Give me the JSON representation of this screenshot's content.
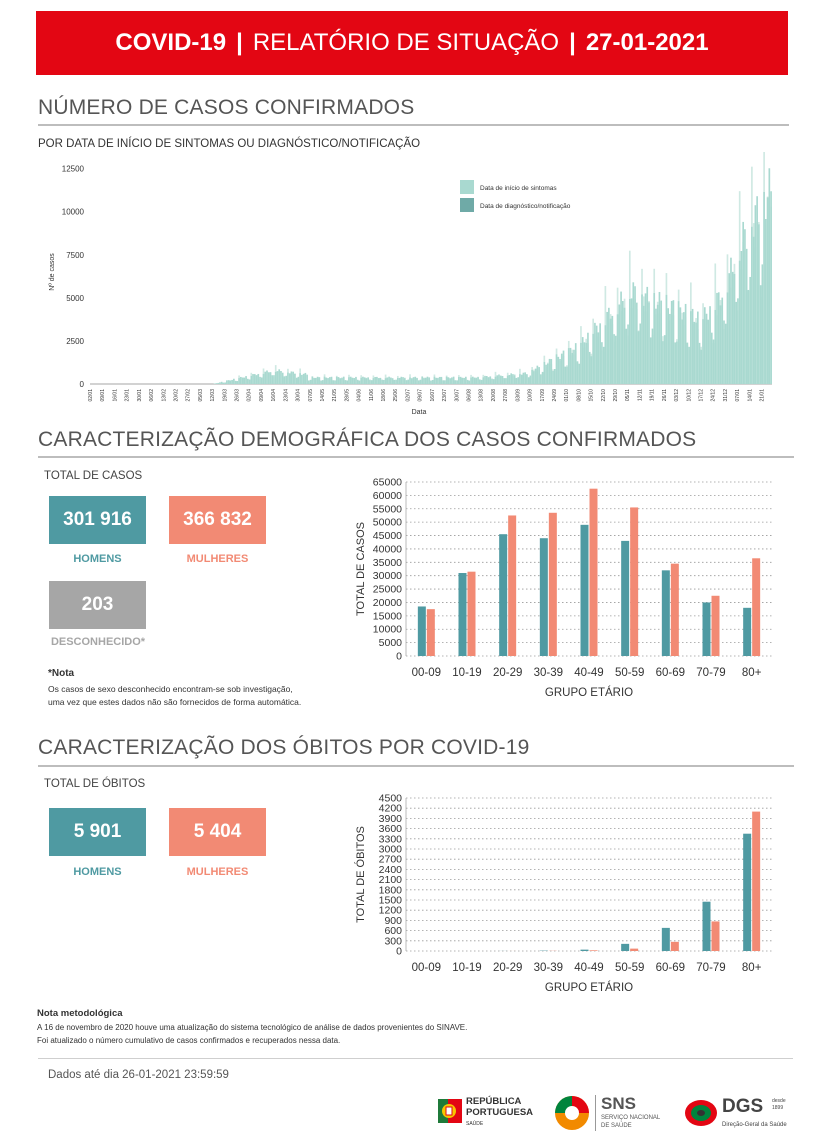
{
  "header": {
    "part1": "COVID-19",
    "sep1": "|",
    "part2": "RELATÓRIO DE SITUAÇÃO",
    "sep2": "|",
    "part3": "27-01-2021"
  },
  "section1": {
    "title": "NÚMERO DE CASOS CONFIRMADOS",
    "subtitle": "POR DATA DE INÍCIO DE SINTOMAS OU DIAGNÓSTICO/NOTIFICAÇÃO",
    "legend": [
      "Data de início de sintomas",
      "Data de diagnóstico/notificação"
    ],
    "ylabel": "Nº de casos",
    "xlabel": "Data",
    "yticks": [
      "0",
      "2500",
      "5000",
      "7500",
      "10000",
      "12500"
    ],
    "xticks": [
      "02/01",
      "09/01",
      "16/01",
      "23/01",
      "30/01",
      "06/02",
      "13/02",
      "20/02",
      "27/02",
      "05/03",
      "12/03",
      "19/03",
      "26/03",
      "02/04",
      "09/04",
      "16/04",
      "23/04",
      "30/04",
      "07/05",
      "14/05",
      "21/05",
      "28/05",
      "04/06",
      "11/06",
      "18/06",
      "25/06",
      "02/07",
      "09/07",
      "16/07",
      "23/07",
      "30/07",
      "06/08",
      "13/08",
      "20/08",
      "27/08",
      "03/09",
      "10/09",
      "17/09",
      "24/09",
      "01/10",
      "08/10",
      "15/10",
      "22/10",
      "29/10",
      "05/11",
      "12/11",
      "19/11",
      "26/11",
      "03/12",
      "10/12",
      "17/12",
      "24/12",
      "31/12",
      "07/01",
      "14/01",
      "21/01"
    ]
  },
  "section2": {
    "title": "CARACTERIZAÇÃO DEMOGRÁFICA DOS CASOS CONFIRMADOS",
    "total_label": "TOTAL DE CASOS",
    "men_value": "301 916",
    "men_label": "HOMENS",
    "women_value": "366 832",
    "women_label": "MULHERES",
    "unknown_value": "203",
    "unknown_label": "DESCONHECIDO*",
    "note_title": "*Nota",
    "note_text1": "Os casos de sexo desconhecido encontram-se sob investigação,",
    "note_text2": "uma vez que estes dados não são fornecidos de forma automática."
  },
  "section3": {
    "title": "CARACTERIZAÇÃO DOS ÓBITOS POR COVID-19",
    "total_label": "TOTAL DE ÓBITOS",
    "men_value": "5 901",
    "men_label": "HOMENS",
    "women_value": "5 404",
    "women_label": "MULHERES"
  },
  "footer": {
    "nota_title": "Nota metodológica",
    "nota_line1": "A 16 de novembro de 2020 houve uma atualização do sistema tecnológico de análise de dados provenientes do SINAVE.",
    "nota_line2": "Foi atualizado o número cumulativo de casos confirmados e recuperados nessa data.",
    "data_ate": "Dados até dia 26-01-2021 23:59:59",
    "logo1_line1": "REPÚBLICA",
    "logo1_line2": "PORTUGUESA",
    "logo1_line3": "SAÚDE",
    "logo2_title": "SNS",
    "logo2_line1": "SERVIÇO NACIONAL",
    "logo2_line2": "DE SAÚDE",
    "logo3_title": "DGS",
    "logo3_small1": "desde",
    "logo3_small2": "1899",
    "logo3_line": "Direção-Geral da Saúde"
  },
  "colors": {
    "red": "#e30613",
    "teal": "#4f9aa2",
    "salmon": "#f28a74",
    "grey": "#a6a6a6",
    "light_teal": "#a9d9d0"
  },
  "chart_data": [
    {
      "type": "bar",
      "title": "",
      "xlabel": "GRUPO ETÁRIO",
      "ylabel": "TOTAL DE CASOS",
      "categories": [
        "00-09",
        "10-19",
        "20-29",
        "30-39",
        "40-49",
        "50-59",
        "60-69",
        "70-79",
        "80+"
      ],
      "series": [
        {
          "name": "HOMENS",
          "color": "#4f9aa2",
          "values": [
            18500,
            31000,
            45500,
            44000,
            49000,
            43000,
            32000,
            20000,
            18000
          ]
        },
        {
          "name": "MULHERES",
          "color": "#f28a74",
          "values": [
            17500,
            31500,
            52500,
            53500,
            62500,
            55500,
            34500,
            22500,
            36500
          ]
        }
      ],
      "ylim": [
        0,
        65000
      ],
      "yticks": [
        0,
        5000,
        10000,
        15000,
        20000,
        25000,
        30000,
        35000,
        40000,
        45000,
        50000,
        55000,
        60000,
        65000
      ],
      "grid": true
    },
    {
      "type": "bar",
      "title": "",
      "xlabel": "GRUPO ETÁRIO",
      "ylabel": "TOTAL DE ÓBITOS",
      "categories": [
        "00-09",
        "10-19",
        "20-29",
        "30-39",
        "40-49",
        "50-59",
        "60-69",
        "70-79",
        "80+"
      ],
      "series": [
        {
          "name": "HOMENS",
          "color": "#4f9aa2",
          "values": [
            0,
            0,
            2,
            10,
            40,
            210,
            680,
            1450,
            3450
          ]
        },
        {
          "name": "MULHERES",
          "color": "#f28a74",
          "values": [
            0,
            0,
            1,
            5,
            20,
            70,
            270,
            870,
            4100
          ]
        }
      ],
      "ylim": [
        0,
        4500
      ],
      "yticks": [
        0,
        300,
        600,
        900,
        1200,
        1500,
        1800,
        2100,
        2400,
        2700,
        3000,
        3300,
        3600,
        3900,
        4200,
        4500
      ],
      "grid": true
    }
  ]
}
